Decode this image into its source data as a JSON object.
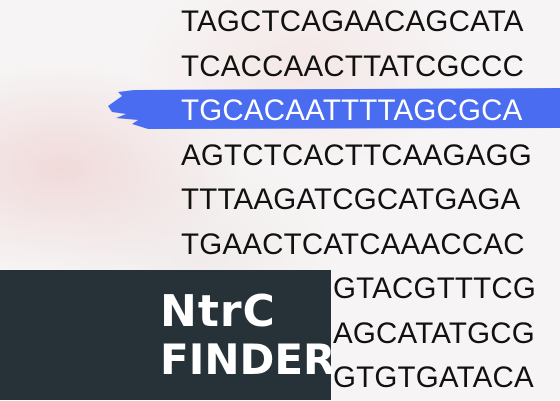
{
  "sequences": [
    "TAGCTCAGAACAGCATA",
    "TCACCAACTTATCGCCC",
    "TGCACAATTTTAGCGCA",
    "AGTCTCACTTCAAGAGG",
    "TTTAAGATCGCATGAGA",
    "TGAACTCATCAAACCAC",
    "GTACGTTTCG",
    "AGCATATGCG",
    "GTGTGATACA"
  ],
  "highlight_index": 2,
  "logo": {
    "line1": "NtrC",
    "line2": "FINDER"
  },
  "colors": {
    "highlight": "#4a6cf0",
    "logo_background": "#263238",
    "text": "#111111"
  }
}
